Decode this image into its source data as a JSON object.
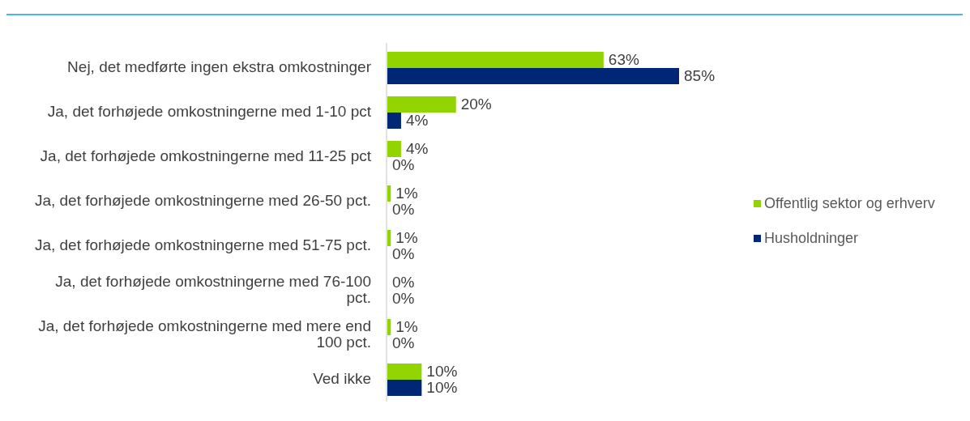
{
  "chart_data": {
    "type": "bar",
    "orientation": "horizontal",
    "relative": false,
    "legend": "right",
    "categories": [
      "Nej, det medførte ingen ekstra omkostninger",
      "Ja, det forhøjede omkostningerne med 1-10 pct",
      "Ja, det forhøjede omkostningerne med 11-25 pct",
      "Ja, det forhøjede omkostningerne med 26-50 pct.",
      "Ja, det forhøjede omkostningerne med 51-75 pct.",
      "Ja, det forhøjede omkostningerne med 76-100 pct.",
      "Ja, det forhøjede omkostningerne med mere end 100 pct.",
      "Ved ikke"
    ],
    "series": [
      {
        "name": "Offentlig sektor og erhverv",
        "color": "#92d400",
        "values": [
          63,
          20,
          4,
          1,
          1,
          0,
          1,
          10
        ],
        "value_labels": [
          "63%",
          "20%",
          "4%",
          "1%",
          "1%",
          "0%",
          "1%",
          "10%"
        ]
      },
      {
        "name": "Husholdninger",
        "color": "#002776",
        "values": [
          85,
          4,
          0,
          0,
          0,
          0,
          0,
          10
        ],
        "value_labels": [
          "85%",
          "4%",
          "0%",
          "0%",
          "0%",
          "0%",
          "0%",
          "10%"
        ]
      }
    ]
  }
}
